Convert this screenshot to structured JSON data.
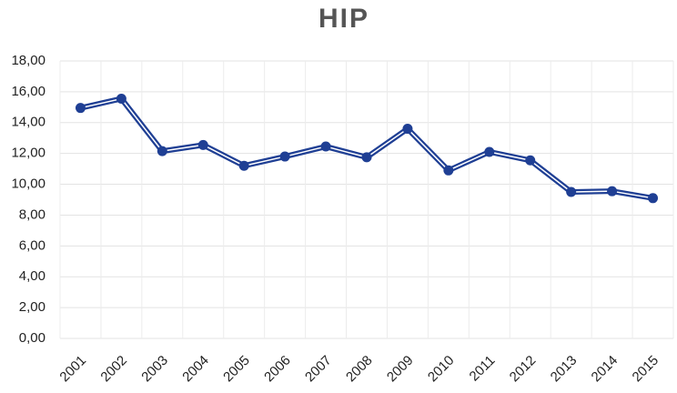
{
  "chart_data": {
    "type": "line",
    "title": "HIP",
    "categories": [
      "2001",
      "2002",
      "2003",
      "2004",
      "2005",
      "2006",
      "2007",
      "2008",
      "2009",
      "2010",
      "2011",
      "2012",
      "2013",
      "2014",
      "2015"
    ],
    "series": [
      {
        "name": "HIP",
        "color": "#1f3f94",
        "values": [
          14.95,
          15.55,
          12.15,
          12.55,
          11.2,
          11.8,
          12.45,
          11.75,
          13.6,
          10.9,
          12.1,
          11.55,
          9.5,
          9.55,
          9.1
        ]
      }
    ],
    "ylim": [
      0,
      18
    ],
    "yticks": [
      {
        "value": 0,
        "label": "0,00"
      },
      {
        "value": 2,
        "label": "2,00"
      },
      {
        "value": 4,
        "label": "4,00"
      },
      {
        "value": 6,
        "label": "6,00"
      },
      {
        "value": 8,
        "label": "8,00"
      },
      {
        "value": 10,
        "label": "10,00"
      },
      {
        "value": 12,
        "label": "12,00"
      },
      {
        "value": 14,
        "label": "14,00"
      },
      {
        "value": 16,
        "label": "16,00"
      },
      {
        "value": 18,
        "label": "18,00"
      }
    ],
    "grid": true
  }
}
